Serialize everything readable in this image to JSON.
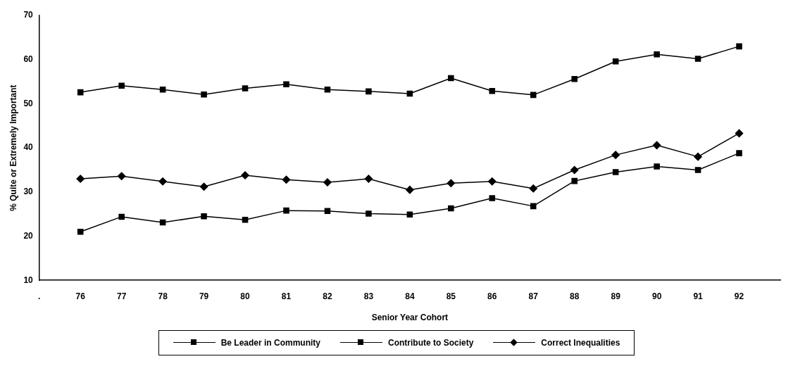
{
  "chart_data": {
    "type": "line",
    "xlabel": "Senior Year Cohort",
    "ylabel": "% Quite or Extremely Important",
    "categories": [
      ".",
      "76",
      "77",
      "78",
      "79",
      "80",
      "81",
      "82",
      "83",
      "84",
      "85",
      "86",
      "87",
      "88",
      "89",
      "90",
      "91",
      "92",
      null
    ],
    "ylim": [
      10,
      70
    ],
    "yticks": [
      10,
      20,
      30,
      40,
      50,
      60,
      70
    ],
    "grid": false,
    "legend": "bottom",
    "line_style": "solid",
    "series": [
      {
        "name": "Be Leader in Community",
        "color": "#000000",
        "marker": "square",
        "values": [
          null,
          21.0,
          24.4,
          23.1,
          24.5,
          23.7,
          25.8,
          25.7,
          25.1,
          24.9,
          26.3,
          28.6,
          26.8,
          32.5,
          34.5,
          35.8,
          35.0,
          38.8,
          null
        ]
      },
      {
        "name": "Contribute to Society",
        "color": "#000000",
        "marker": "square",
        "values": [
          null,
          52.6,
          54.1,
          53.2,
          52.1,
          53.5,
          54.4,
          53.2,
          52.8,
          52.3,
          55.8,
          52.9,
          52.0,
          55.6,
          59.6,
          61.2,
          60.2,
          63.0,
          null
        ]
      },
      {
        "name": "Correct Inequalities",
        "color": "#000000",
        "marker": "diamond",
        "values": [
          null,
          33.0,
          33.6,
          32.4,
          31.2,
          33.8,
          32.8,
          32.2,
          33.0,
          30.5,
          32.0,
          32.4,
          30.8,
          35.0,
          38.4,
          40.6,
          38.0,
          43.3,
          null
        ]
      }
    ]
  }
}
